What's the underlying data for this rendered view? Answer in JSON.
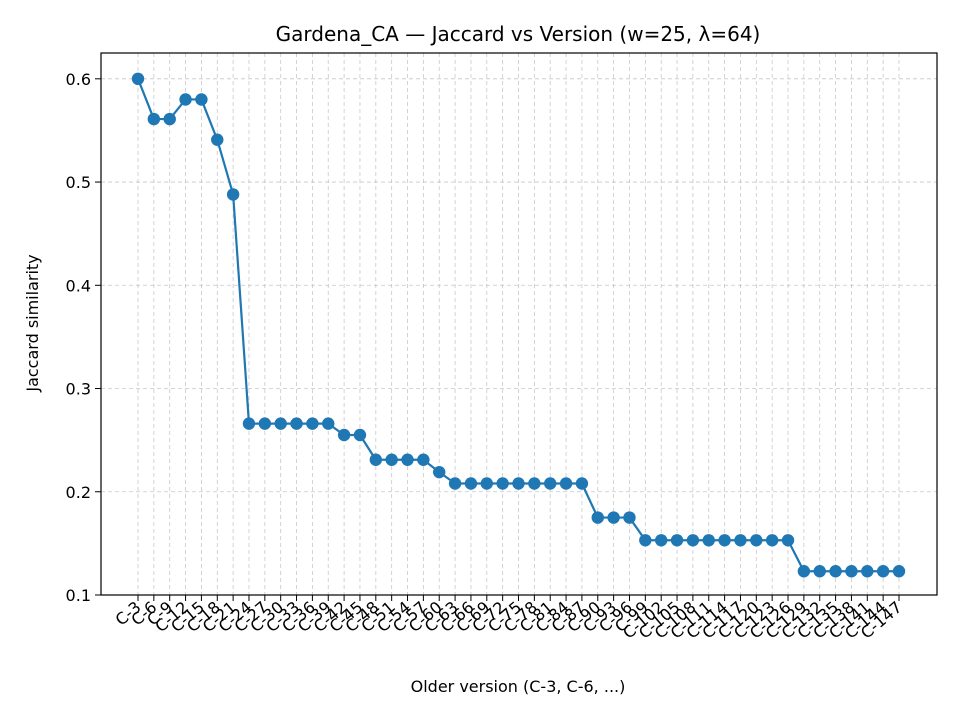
{
  "chart_data": {
    "type": "line",
    "title": "Gardena_CA — Jaccard vs Version (w=25, λ=64)",
    "xlabel": "Older version (C-3, C-6, ...)",
    "ylabel": "Jaccard similarity",
    "ylim": [
      0.1,
      0.625
    ],
    "yticks": [
      0.1,
      0.2,
      0.3,
      0.4,
      0.5,
      0.6
    ],
    "ytick_labels": [
      "0.1",
      "0.2",
      "0.3",
      "0.4",
      "0.5",
      "0.6"
    ],
    "grid": true,
    "series_color": "#1f77b4",
    "categories": [
      "C-3",
      "C-6",
      "C-9",
      "C-12",
      "C-15",
      "C-18",
      "C-21",
      "C-24",
      "C-27",
      "C-30",
      "C-33",
      "C-36",
      "C-39",
      "C-42",
      "C-45",
      "C-48",
      "C-51",
      "C-54",
      "C-57",
      "C-60",
      "C-63",
      "C-66",
      "C-69",
      "C-72",
      "C-75",
      "C-78",
      "C-81",
      "C-84",
      "C-87",
      "C-90",
      "C-93",
      "C-96",
      "C-99",
      "C-102",
      "C-105",
      "C-108",
      "C-111",
      "C-114",
      "C-117",
      "C-120",
      "C-123",
      "C-126",
      "C-129",
      "C-132",
      "C-135",
      "C-138",
      "C-141",
      "C-144",
      "C-147"
    ],
    "series": [
      {
        "values": [
          0.6,
          0.561,
          0.561,
          0.58,
          0.58,
          0.541,
          0.488,
          0.266,
          0.266,
          0.266,
          0.266,
          0.266,
          0.266,
          0.255,
          0.255,
          0.231,
          0.231,
          0.231,
          0.231,
          0.219,
          0.208,
          0.208,
          0.208,
          0.208,
          0.208,
          0.208,
          0.208,
          0.208,
          0.208,
          0.175,
          0.175,
          0.175,
          0.153,
          0.153,
          0.153,
          0.153,
          0.153,
          0.153,
          0.153,
          0.153,
          0.153,
          0.153,
          0.123,
          0.123,
          0.123,
          0.123,
          0.123,
          0.123,
          0.123
        ]
      }
    ]
  }
}
